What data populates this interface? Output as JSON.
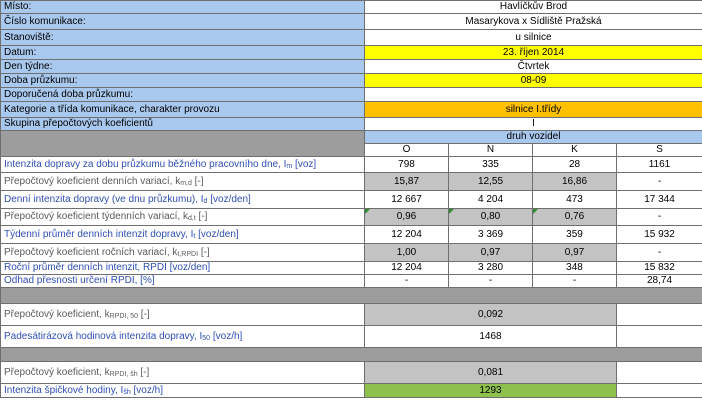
{
  "header": {
    "misto": {
      "label": "Místo:",
      "value": "Havlíčkův Brod"
    },
    "cislo": {
      "label": "Číslo komunikace:",
      "value": "Masarykova x Sídliště Pražská"
    },
    "stanoviste": {
      "label": "Stanoviště:",
      "value": "u silnice"
    },
    "datum": {
      "label": "Datum:",
      "value": "23. říjen 2014"
    },
    "den": {
      "label": "Den týdne:",
      "value": "Čtvrtek"
    },
    "doba": {
      "label": "Doba průzkumu:",
      "value": "08-09"
    },
    "doporucena": {
      "label": "Doporučená doba průzkumu:",
      "value": ""
    },
    "kategorie": {
      "label": "Kategorie a třída komunikace, charakter provozu",
      "value": "silnice I.třídy"
    },
    "skupina": {
      "label": "Skupina přepočtových koeficientů",
      "value": "I"
    }
  },
  "vehicles": {
    "title": "druh vozidel",
    "columns": [
      "O",
      "N",
      "K",
      "S"
    ]
  },
  "rows": {
    "r1": {
      "label": "Intenzita dopravy za dobu průzkumu běžného pracovního dne, I",
      "sub": "m",
      "unit": " [voz]",
      "values": [
        "798",
        "335",
        "28",
        "1161"
      ]
    },
    "r2": {
      "label": "Přepočtový koeficient denních variací, k",
      "sub": "m,d",
      "unit": " [-]",
      "values": [
        "15,87",
        "12,55",
        "16,86",
        "-"
      ]
    },
    "r3": {
      "label": "Denní intenzita dopravy (ve dnu průzkumu), I",
      "sub": "d",
      "unit": " [voz/den]",
      "values": [
        "12 667",
        "4 204",
        "473",
        "17 344"
      ]
    },
    "r4": {
      "label": "Přepočtový koeficient týdenních variací, k",
      "sub": "d,t",
      "unit": " [-]",
      "values": [
        "0,96",
        "0,80",
        "0,76",
        "-"
      ]
    },
    "r5": {
      "label": "Týdenní průměr denních intenzit dopravy, I",
      "sub": "t",
      "unit": " [voz/den]",
      "values": [
        "12 204",
        "3 369",
        "359",
        "15 932"
      ]
    },
    "r6": {
      "label": "Přepočtový koeficient ročních variací, k",
      "sub": "t,RPDI",
      "unit": " [-]",
      "values": [
        "1,00",
        "0,97",
        "0,97",
        "-"
      ]
    },
    "r7": {
      "label": "Roční průměr denních intenzit, RPDI [voz/den]",
      "values": [
        "12 204",
        "3 280",
        "348",
        "15 832"
      ]
    },
    "r8": {
      "label": "Odhad přesnosti určení RPDI, [%]",
      "values": [
        "-",
        "-",
        "-",
        "28,74"
      ]
    }
  },
  "section50": {
    "k_label": "Přepočtový koeficient, k",
    "k_sub": "RPDI, 50",
    "k_unit": " [-]",
    "k_value": "0,092",
    "i_label": "Padesátirázová hodinová intenzita dopravy, I",
    "i_sub": "50",
    "i_unit": " [voz/h]",
    "i_value": "1468"
  },
  "sectionSh": {
    "k_label": "Přepočtový koeficient, k",
    "k_sub": "RPDI, šh",
    "k_unit": " [-]",
    "k_value": "0,081",
    "i_label": "Intenzita špičkové hodiny, I",
    "i_sub": "šh",
    "i_unit": " [voz/h]",
    "i_value": "1293"
  }
}
